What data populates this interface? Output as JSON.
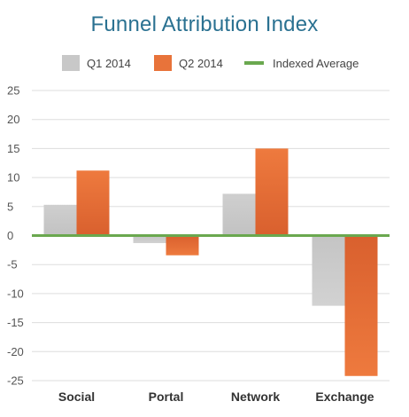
{
  "chart_data": {
    "type": "bar",
    "title": "Funnel Attribution Index",
    "categories": [
      "Social",
      "Portal",
      "Network",
      "Exchange"
    ],
    "series": [
      {
        "name": "Q1 2014",
        "values": [
          5.3,
          -1.3,
          7.2,
          -12.1
        ],
        "color": "#c8c8c8"
      },
      {
        "name": "Q2 2014",
        "values": [
          11.2,
          -3.4,
          15.0,
          -24.2
        ],
        "color": "#e8733a"
      }
    ],
    "reference_line": {
      "name": "Indexed Average",
      "value": 0,
      "color": "#6aa84f"
    },
    "ylim": [
      -25,
      25
    ],
    "yticks": [
      25,
      20,
      15,
      10,
      5,
      0,
      -5,
      -10,
      -15,
      -20,
      -25
    ],
    "grid": true,
    "legend_position": "top"
  }
}
